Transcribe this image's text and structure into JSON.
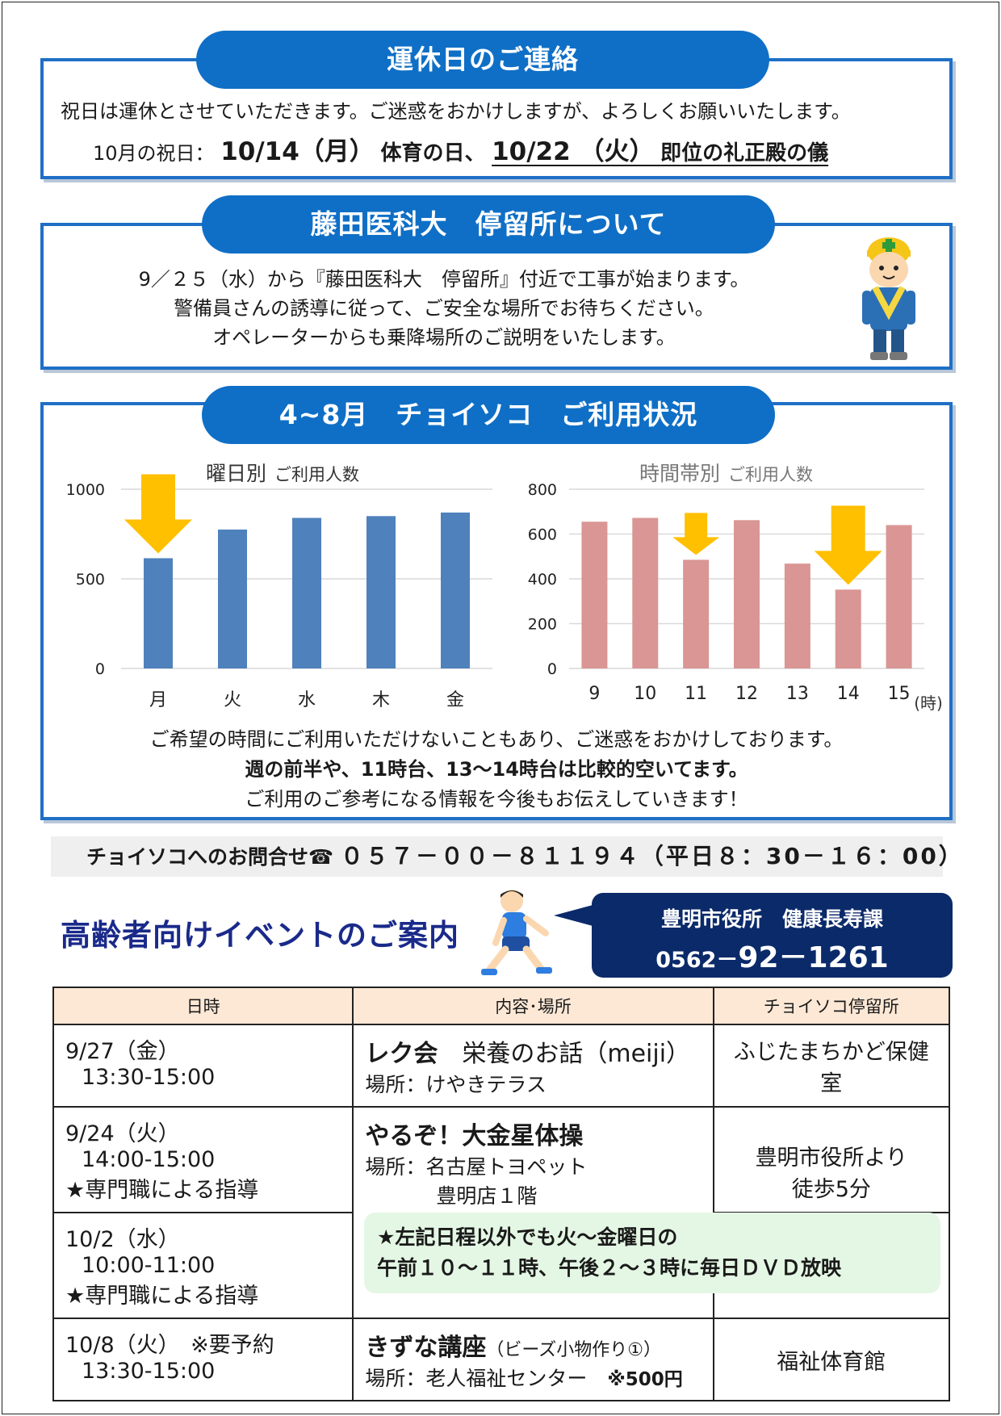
{
  "holiday": {
    "title": "運休日のご連絡",
    "line1": "祝日は運休とさせていただきます。ご迷惑をおかけしますが、よろしくお願いいたします。",
    "line2_prefix": "10月の祝日：",
    "date1": "10/14（月）",
    "date1_label": "体育の日、",
    "date2": "10/22 （火）",
    "date2_label": "即位の礼正殿の儀"
  },
  "busstop": {
    "title": "藤田医科大　停留所について",
    "lines": [
      "9／２５（水）から『藤田医科大　停留所』付近で工事が始まります。",
      "警備員さんの誘導に従って、ご安全な場所でお待ちください。",
      "オペレーターからも乗降場所のご説明をいたします。"
    ]
  },
  "usage": {
    "title": "4~8月　チョイソコ　ご利用状況",
    "note1": "ご希望の時間にご利用いただけないこともあり、ご迷惑をおかけしております。",
    "note2": "週の前半や、11時台、13～14時台は比較的空いてます。",
    "note3": "ご利用のご参考になる情報を今後もお伝えしていきます！"
  },
  "chart_data": [
    {
      "type": "bar",
      "title": "曜日別",
      "subtitle": "ご利用人数",
      "categories": [
        "月",
        "火",
        "水",
        "木",
        "金"
      ],
      "values": [
        615,
        775,
        840,
        850,
        870
      ],
      "ylim": [
        0,
        1000
      ],
      "yticks": [
        "0",
        "500",
        "1000"
      ],
      "color": "#4f81bd",
      "highlight_arrows": [
        "月"
      ]
    },
    {
      "type": "bar",
      "title": "時間帯別",
      "subtitle": "ご利用人数",
      "categories": [
        "9",
        "10",
        "11",
        "12",
        "13",
        "14",
        "15"
      ],
      "values": [
        655,
        672,
        485,
        662,
        468,
        352,
        640
      ],
      "ylim": [
        0,
        800
      ],
      "yticks": [
        "0",
        "200",
        "400",
        "600",
        "800"
      ],
      "xunit": "(時)",
      "color": "#d99694",
      "highlight_arrows": [
        "11",
        "14"
      ]
    }
  ],
  "contact": {
    "label": "チョイソコへのお問合せ☎",
    "number": "０５７－００－８１１９４（平日８：30－１６：00）"
  },
  "events": {
    "title": "高齢者向けイベントのご案内",
    "office_name": "豊明市役所　健康長寿課",
    "office_tel_a": "0562－",
    "office_tel_b": "92－1261",
    "headers": [
      "日時",
      "内容･場所",
      "チョイソコ停留所"
    ],
    "row1": {
      "date": "9/27（金）",
      "time": "13:30-15:00",
      "title": "レク会",
      "title_rest": "栄養のお話（meiji）",
      "place": "場所：けやきテラス",
      "stop": "ふじたまちかど保健室"
    },
    "row2": {
      "date": "9/24（火）",
      "time": "14:00-15:00",
      "note": "★専門職による指導",
      "title": "やるぞ！大金星体操",
      "place": "場所：名古屋トヨペット",
      "place2": "豊明店１階",
      "stop1": "豊明市役所より",
      "stop2": "徒歩5分"
    },
    "row3": {
      "date": "10/2（水）",
      "time": "10:00-11:00",
      "note": "★専門職による指導"
    },
    "dvd_note1": "★左記日程以外でも火～金曜日の",
    "dvd_note2": "午前１０～１１時、午後２～３時に毎日ＤＶＤ放映",
    "row4": {
      "date": "10/8（火）",
      "reserve": "※要予約",
      "time": "13:30-15:00",
      "title": "きずな講座",
      "paren": "（ビーズ小物作り①）",
      "place": "場所：老人福祉センター",
      "fee": "※500円",
      "stop": "福祉体育館"
    }
  }
}
